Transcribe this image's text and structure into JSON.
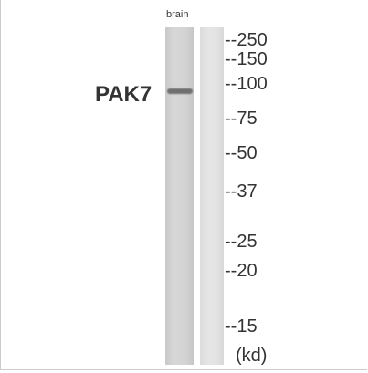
{
  "lane_label": "brain",
  "protein_label": "PAK7",
  "markers": [
    "--250",
    "--150",
    "--100",
    "--75",
    "--50",
    "--37",
    "--25",
    "--20",
    "--15"
  ],
  "unit": "(kd)"
}
